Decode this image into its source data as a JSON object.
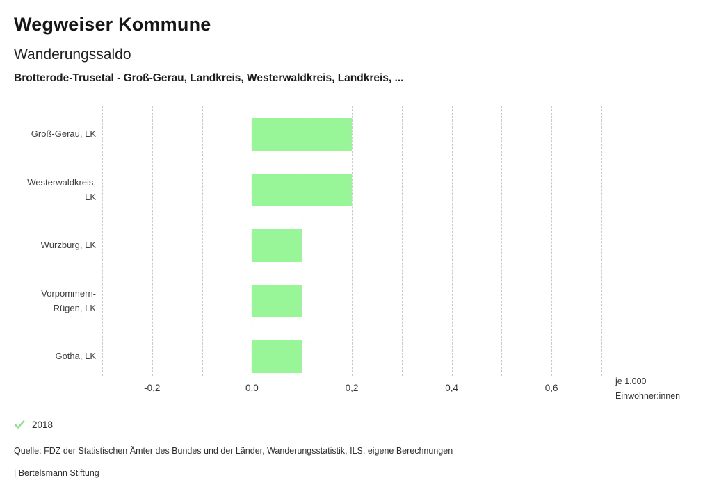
{
  "header": {
    "app_title": "Wegweiser Kommune",
    "chart_title": "Wanderungssaldo",
    "chart_subtitle": "Brotterode-Trusetal - Groß-Gerau, Landkreis, Westerwaldkreis, Landkreis, ..."
  },
  "chart_data": {
    "type": "bar",
    "orientation": "horizontal",
    "categories": [
      "Groß-Gerau, LK",
      "Westerwaldkreis, LK",
      "Würzburg, LK",
      "Vorpommern-Rügen, LK",
      "Gotha, LK"
    ],
    "series": [
      {
        "name": "2018",
        "values": [
          0.2,
          0.2,
          0.1,
          0.1,
          0.1
        ]
      }
    ],
    "xlim": [
      -0.3,
      0.7
    ],
    "grid_step": 0.1,
    "grid_on": true,
    "tick_values": [
      -0.2,
      0.0,
      0.2,
      0.4,
      0.6
    ],
    "tick_labels": [
      "-0,2",
      "0,0",
      "0,2",
      "0,4",
      "0,6"
    ],
    "unit_line1": "je 1.000",
    "unit_line2": "Einwohner:innen",
    "bar_color": "#98f598",
    "gridline_color": "#c9c9c9",
    "legend_position": "bottom-left"
  },
  "legend": {
    "icon": "checkmark-icon",
    "check_color": "#8ce08c",
    "label": "2018"
  },
  "footer": {
    "source": "Quelle: FDZ der Statistischen Ämter des Bundes und der Länder, Wanderungsstatistik, ILS, eigene Berechnungen",
    "attribution": "| Bertelsmann Stiftung"
  }
}
